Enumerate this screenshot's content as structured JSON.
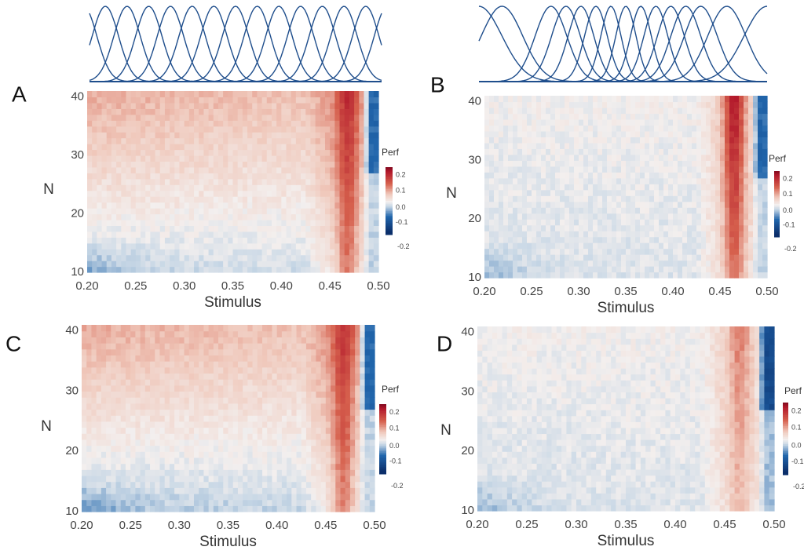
{
  "colors": {
    "curve": "#1f4e8c",
    "neg_strong": "#2166ac",
    "neg_light": "#c9d8e6",
    "neutral": "#f3efee",
    "pos_light": "#f0c9bc",
    "pos_strong": "#b2182b"
  },
  "chart_data": [
    {
      "panel": "A",
      "type": "heatmap",
      "xlabel": "Stimulus",
      "ylabel": "N",
      "xlim": [
        0.2,
        0.5
      ],
      "ylim": [
        10,
        41
      ],
      "xticks": [
        "0.20",
        "0.25",
        "0.30",
        "0.35",
        "0.40",
        "0.45",
        "0.50"
      ],
      "yticks": [
        "10",
        "20",
        "30",
        "40"
      ],
      "colorbar": {
        "title": "Perf",
        "ticks": [
          "0.2",
          "0.1",
          "0.0",
          "-0.1",
          "-0.2"
        ],
        "range": [
          -0.2,
          0.2
        ]
      },
      "tuning_curves": {
        "count": 15,
        "spacing": "uniform"
      },
      "pattern": {
        "bg_low_n": -0.03,
        "bg_high_n": 0.07,
        "ridge_center": 0.468,
        "ridge_value": 0.18,
        "edge_value": -0.1
      }
    },
    {
      "panel": "B",
      "type": "heatmap",
      "xlabel": "Stimulus",
      "ylabel": "N",
      "xlim": [
        0.2,
        0.5
      ],
      "ylim": [
        10,
        41
      ],
      "xticks": [
        "0.20",
        "0.25",
        "0.30",
        "0.35",
        "0.40",
        "0.45",
        "0.50"
      ],
      "yticks": [
        "10",
        "20",
        "30",
        "40"
      ],
      "colorbar": {
        "title": "Perf",
        "ticks": [
          "0.2",
          "0.1",
          "0.0",
          "-0.1",
          "-0.2"
        ],
        "range": [
          -0.2,
          0.2
        ]
      },
      "tuning_curves": {
        "count": 15,
        "spacing": "nonuniform"
      },
      "pattern": {
        "bg_low_n": -0.02,
        "bg_high_n": 0.0,
        "ridge_center": 0.465,
        "ridge_value": 0.2,
        "edge_value": -0.1
      }
    },
    {
      "panel": "C",
      "type": "heatmap",
      "xlabel": "Stimulus",
      "ylabel": "N",
      "xlim": [
        0.2,
        0.5
      ],
      "ylim": [
        10,
        41
      ],
      "xticks": [
        "0.20",
        "0.25",
        "0.30",
        "0.35",
        "0.40",
        "0.45",
        "0.50"
      ],
      "yticks": [
        "10",
        "20",
        "30",
        "40"
      ],
      "colorbar": {
        "title": "Perf",
        "ticks": [
          "0.2",
          "0.1",
          "0.0",
          "-0.1",
          "-0.2"
        ],
        "range": [
          -0.2,
          0.2
        ]
      },
      "pattern": {
        "bg_low_n": -0.04,
        "bg_high_n": 0.07,
        "ridge_center": 0.468,
        "ridge_value": 0.17,
        "edge_value": -0.1
      }
    },
    {
      "panel": "D",
      "type": "heatmap",
      "xlabel": "Stimulus",
      "ylabel": "N",
      "xlim": [
        0.2,
        0.5
      ],
      "ylim": [
        10,
        41
      ],
      "xticks": [
        "0.20",
        "0.25",
        "0.30",
        "0.35",
        "0.40",
        "0.45",
        "0.50"
      ],
      "yticks": [
        "10",
        "20",
        "30",
        "40"
      ],
      "colorbar": {
        "title": "Perf",
        "ticks": [
          "0.2",
          "0.1",
          "0.0",
          "-0.1",
          "-0.2"
        ],
        "range": [
          -0.2,
          0.2
        ]
      },
      "pattern": {
        "bg_low_n": -0.02,
        "bg_high_n": 0.0,
        "ridge_center": 0.465,
        "ridge_value": 0.1,
        "edge_value": -0.15
      }
    }
  ]
}
